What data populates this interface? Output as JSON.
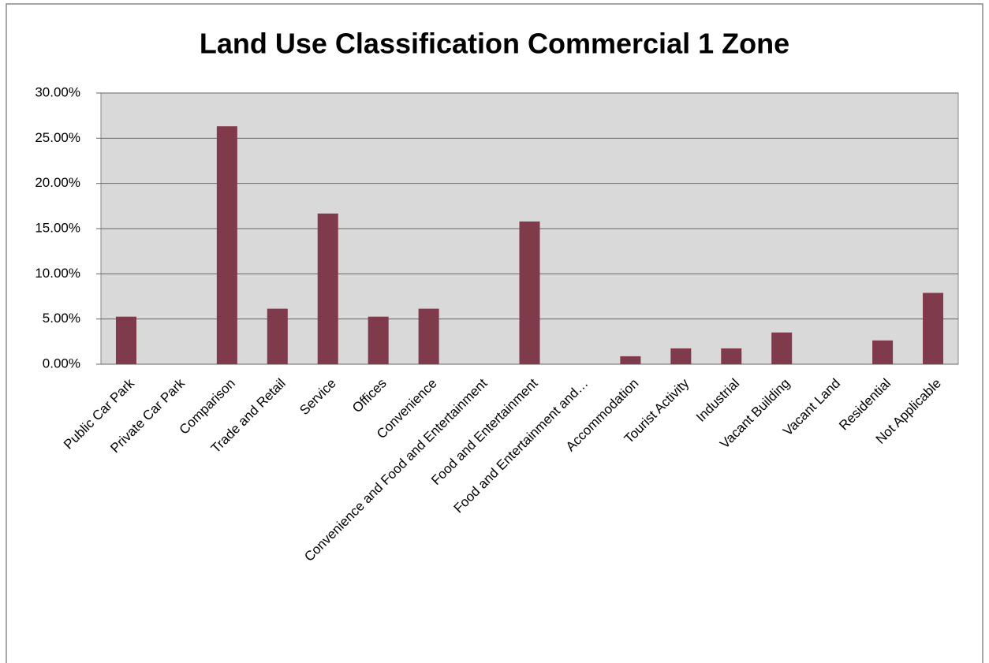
{
  "chart_data": {
    "type": "bar",
    "title": "Land Use Classification Commercial 1 Zone",
    "categories": [
      "Public Car Park",
      "Private Car Park",
      "Comparison",
      "Trade and Retail",
      "Service",
      "Offices",
      "Convenience",
      "Convenience and Food and Entertainment",
      "Food and Entertainment",
      "Food and Entertainment and…",
      "Accommodation",
      "Tourist Activity",
      "Industrial",
      "Vacant Building",
      "Vacant Land",
      "Residential",
      "Not Applicable"
    ],
    "values": [
      5.26,
      0,
      26.32,
      6.14,
      16.67,
      5.26,
      6.14,
      0,
      15.79,
      0,
      0.88,
      1.75,
      1.75,
      3.51,
      0,
      2.63,
      7.89
    ],
    "color": "#7f3a4b",
    "ylim": [
      0,
      30
    ],
    "yticks": [
      {
        "value": 0,
        "label": "0.00%"
      },
      {
        "value": 5,
        "label": "5.00%"
      },
      {
        "value": 10,
        "label": "10.00%"
      },
      {
        "value": 15,
        "label": "15.00%"
      },
      {
        "value": 20,
        "label": "20.00%"
      },
      {
        "value": 25,
        "label": "25.00%"
      },
      {
        "value": 30,
        "label": "30.00%"
      }
    ],
    "grid": true
  }
}
